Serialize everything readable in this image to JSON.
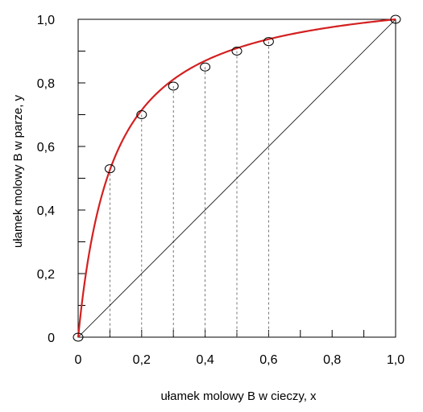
{
  "chart_data": {
    "type": "line",
    "xlabel": "ułamek molowy B w cieczy,   x",
    "ylabel": "ułamek molowy B w parze,   y",
    "xlim": [
      0,
      1
    ],
    "ylim": [
      0,
      1
    ],
    "x_ticks": [
      "0",
      "0,2",
      "0,4",
      "0,6",
      "0,8",
      "1,0"
    ],
    "y_ticks": [
      "0",
      "0,2",
      "0,4",
      "0,6",
      "0,8",
      "1,0"
    ],
    "grid": false,
    "colors": {
      "curve": "#d42020",
      "diagonal": "#000000",
      "axes": "#000000"
    },
    "series": [
      {
        "style": "red-curve-with-circle-markers",
        "points": [
          {
            "x": 0.0,
            "y": 0.0
          },
          {
            "x": 0.1,
            "y": 0.53
          },
          {
            "x": 0.2,
            "y": 0.7
          },
          {
            "x": 0.3,
            "y": 0.79
          },
          {
            "x": 0.4,
            "y": 0.85
          },
          {
            "x": 0.5,
            "y": 0.9
          },
          {
            "x": 0.6,
            "y": 0.93
          },
          {
            "x": 1.0,
            "y": 1.0
          }
        ]
      },
      {
        "style": "diagonal-line",
        "points": [
          {
            "x": 0.0,
            "y": 0.0
          },
          {
            "x": 1.0,
            "y": 1.0
          }
        ]
      }
    ],
    "dashed_drop_lines_x": [
      0.1,
      0.2,
      0.3,
      0.4,
      0.5,
      0.6
    ]
  }
}
